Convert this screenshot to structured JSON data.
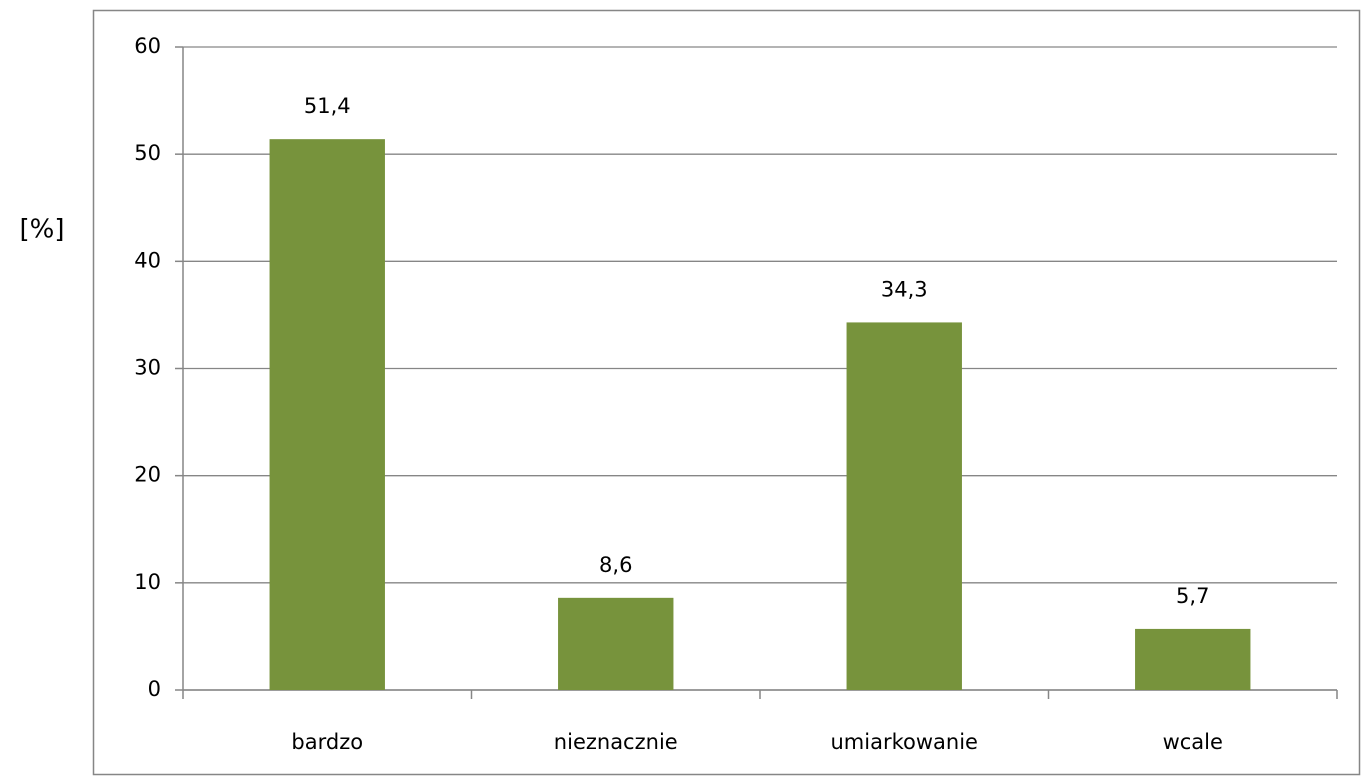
{
  "chart_data": {
    "type": "bar",
    "y_label": "[%]",
    "categories": [
      "bardzo",
      "nieznacznie",
      "umiarkowanie",
      "wcale"
    ],
    "values": [
      51.4,
      8.6,
      34.3,
      5.7
    ],
    "value_labels": [
      "51,4",
      "8,6",
      "34,3",
      "5,7"
    ],
    "color": "#77933c",
    "ylim": [
      0,
      60
    ],
    "yticks": [
      0,
      10,
      20,
      30,
      40,
      50,
      60
    ],
    "grid": true
  }
}
